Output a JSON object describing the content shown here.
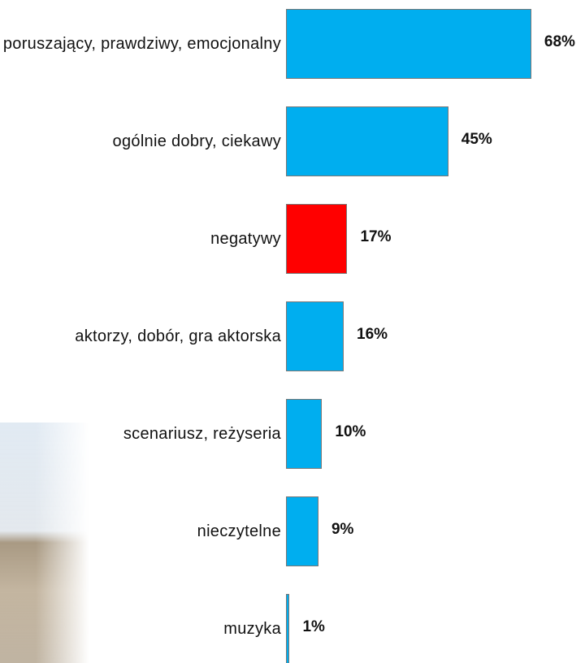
{
  "chart_data": {
    "type": "bar",
    "orientation": "horizontal",
    "categories": [
      "poruszający, prawdziwy, emocjonalny",
      "ogólnie dobry, ciekawy",
      "negatywy",
      "aktorzy, dobór, gra aktorska",
      "scenariusz, reżyseria",
      "nieczytelne",
      "muzyka"
    ],
    "values": [
      68,
      45,
      17,
      16,
      10,
      9,
      1
    ],
    "value_labels": [
      "68%",
      "45%",
      "17%",
      "16%",
      "10%",
      "9%",
      "1%"
    ],
    "colors": [
      "#00aeef",
      "#00aeef",
      "#ff0000",
      "#00aeef",
      "#00aeef",
      "#00aeef",
      "#00aeef"
    ],
    "xlim": [
      0,
      100
    ]
  }
}
